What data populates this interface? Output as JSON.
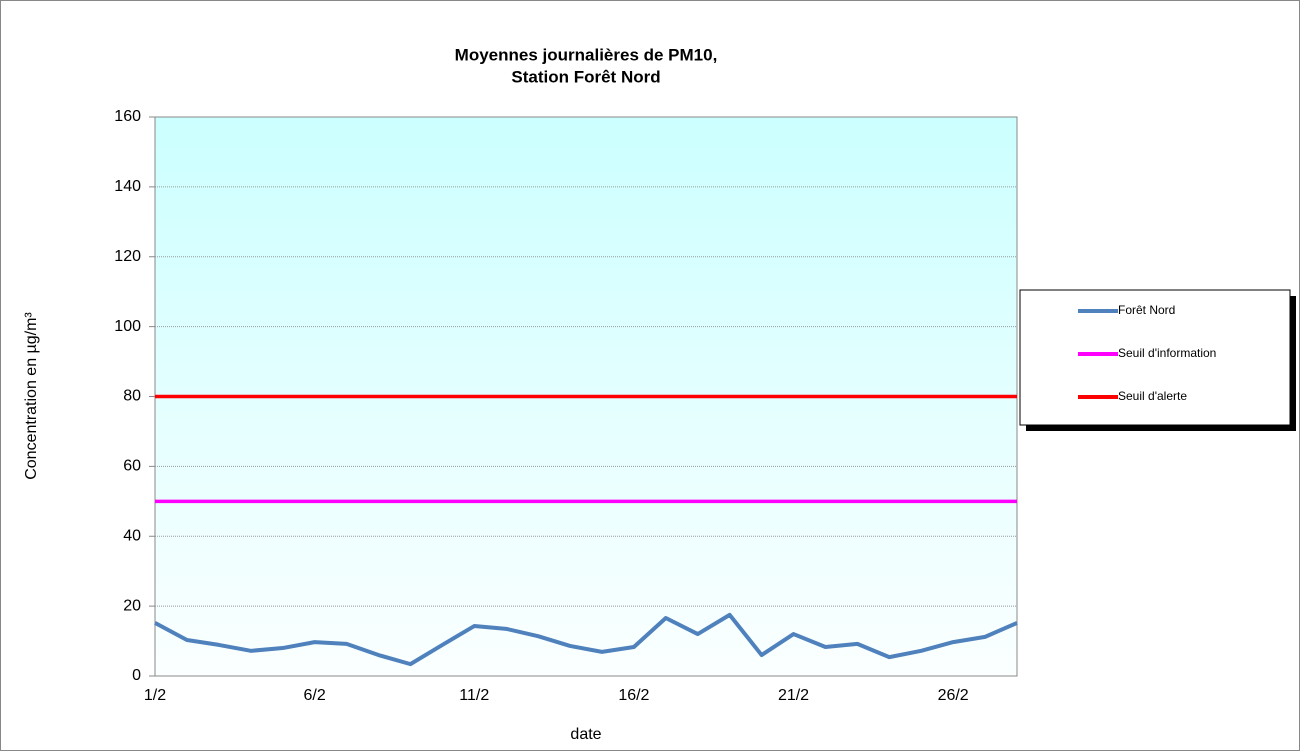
{
  "chart_data": {
    "type": "line",
    "title": [
      "Moyennes journalières de PM10,",
      "Station Forêt Nord"
    ],
    "x_label": "date",
    "y_label": "Concentration en µg/m³",
    "categories": [
      "1/2",
      null,
      null,
      null,
      null,
      "6/2",
      null,
      null,
      null,
      null,
      "11/2",
      null,
      null,
      null,
      null,
      "16/2",
      null,
      null,
      null,
      null,
      "21/2",
      null,
      null,
      null,
      null,
      "26/2",
      null,
      null
    ],
    "series": [
      {
        "name": "Forêt Nord",
        "color": "#4f81bd",
        "values": [
          15.2,
          10.3,
          8.9,
          7.2,
          8.0,
          9.7,
          9.2,
          6.0,
          3.4,
          8.9,
          14.3,
          13.5,
          11.4,
          8.6,
          6.9,
          8.3,
          16.6,
          12.0,
          17.5,
          6.0,
          12.0,
          8.3,
          9.2,
          5.4,
          7.2,
          9.7,
          11.2,
          15.2
        ]
      },
      {
        "name": "Seuil d'information",
        "color": "#ff00ff",
        "values": [
          50,
          50,
          50,
          50,
          50,
          50,
          50,
          50,
          50,
          50,
          50,
          50,
          50,
          50,
          50,
          50,
          50,
          50,
          50,
          50,
          50,
          50,
          50,
          50,
          50,
          50,
          50,
          50
        ]
      },
      {
        "name": "Seuil d'alerte",
        "color": "#ff0000",
        "values": [
          80,
          80,
          80,
          80,
          80,
          80,
          80,
          80,
          80,
          80,
          80,
          80,
          80,
          80,
          80,
          80,
          80,
          80,
          80,
          80,
          80,
          80,
          80,
          80,
          80,
          80,
          80,
          80
        ]
      }
    ],
    "ylim": [
      0,
      160
    ],
    "yticks": [
      0,
      20,
      40,
      60,
      80,
      100,
      120,
      140,
      160
    ],
    "grid": true,
    "legend": "right"
  }
}
